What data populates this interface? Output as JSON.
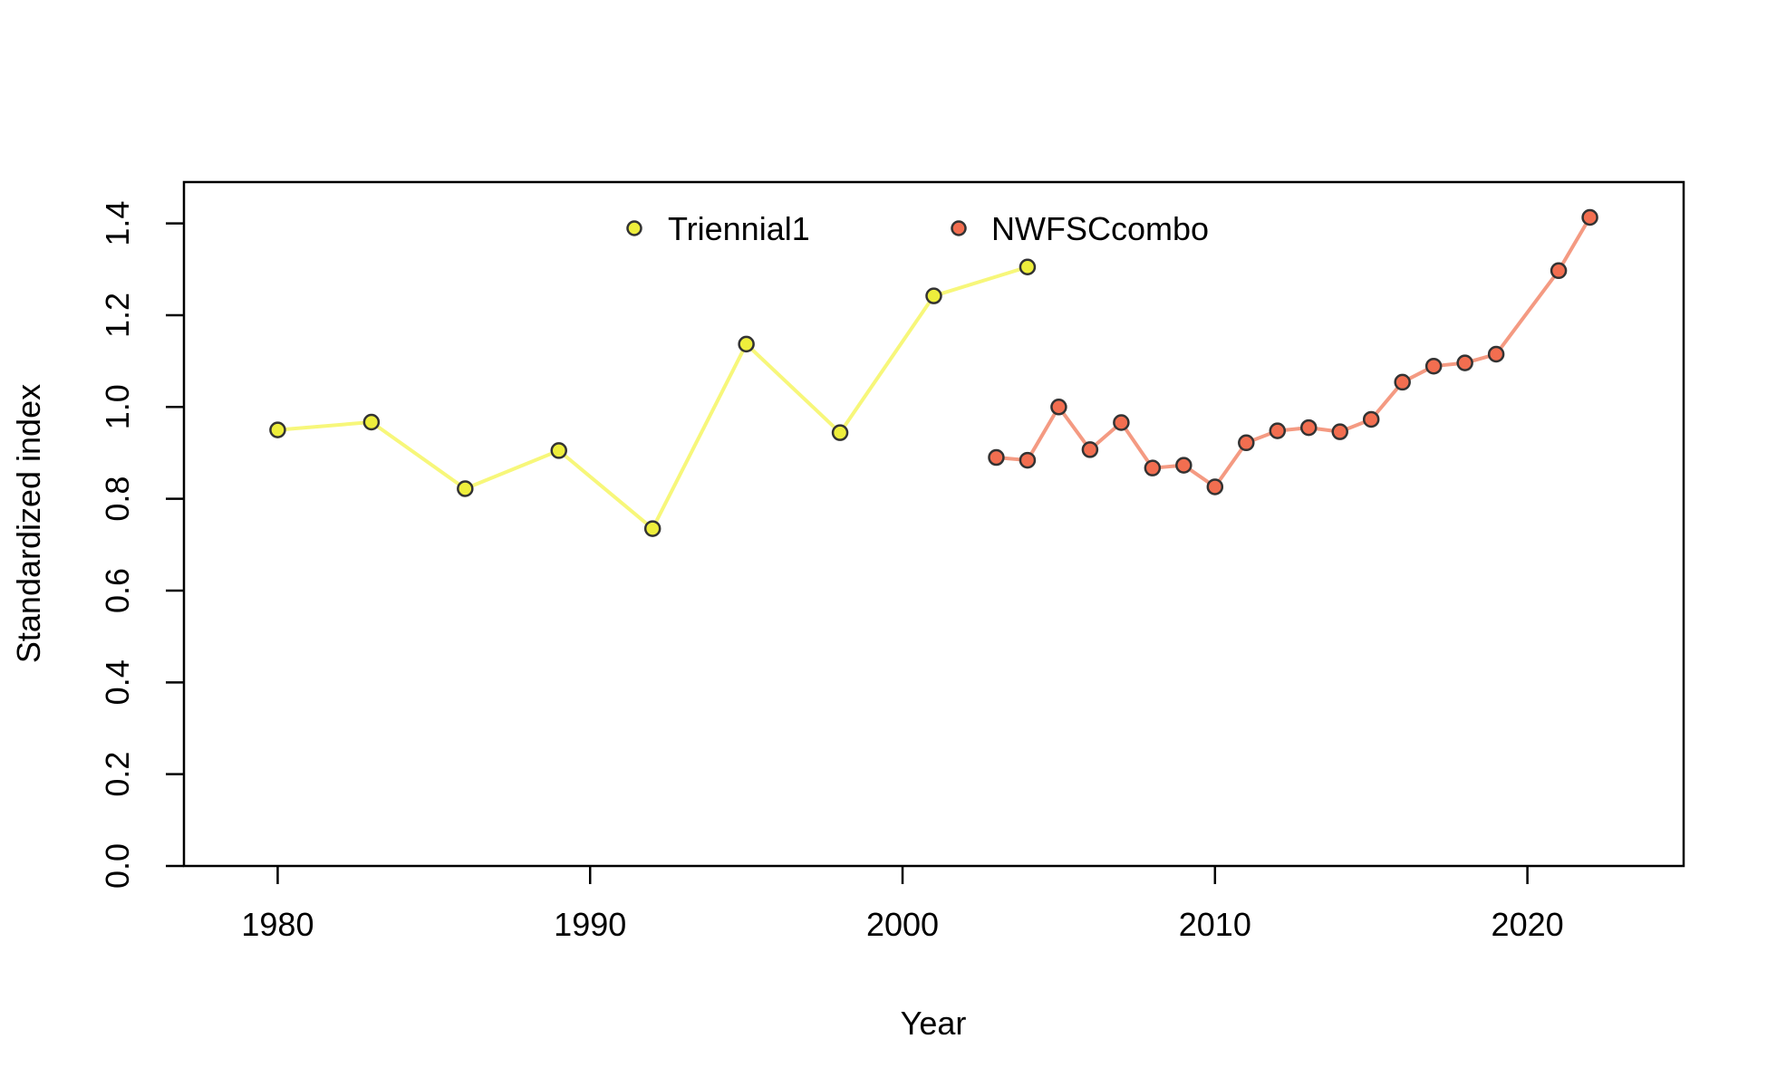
{
  "chart_data": {
    "type": "line",
    "title": "",
    "xlabel": "Year",
    "ylabel": "Standardized index",
    "xlim": [
      1977,
      2025
    ],
    "ylim": [
      0,
      1.49
    ],
    "x_ticks": [
      1980,
      1990,
      2000,
      2010,
      2020
    ],
    "x_tick_labels": [
      "1980",
      "1990",
      "2000",
      "2010",
      "2020"
    ],
    "y_ticks": [
      0,
      0.2,
      0.4,
      0.6,
      0.8,
      1.0,
      1.2,
      1.4
    ],
    "y_tick_labels": [
      "0.0",
      "0.2",
      "0.4",
      "0.6",
      "0.8",
      "1.0",
      "1.2",
      "1.4"
    ],
    "grid": false,
    "legend_position": "top-center",
    "series": [
      {
        "name": "Triennial1",
        "line_color": "#F7F77A",
        "point_color": "#EEEE3C",
        "x": [
          1980,
          1983,
          1986,
          1989,
          1992,
          1995,
          1998,
          2001,
          2004
        ],
        "y": [
          0.95,
          0.967,
          0.822,
          0.905,
          0.735,
          1.137,
          0.944,
          1.242,
          1.305
        ]
      },
      {
        "name": "NWFSCcombo",
        "line_color": "#F49A82",
        "point_color": "#F26E50",
        "x": [
          2003,
          2004,
          2005,
          2006,
          2007,
          2008,
          2009,
          2010,
          2011,
          2012,
          2013,
          2014,
          2015,
          2016,
          2017,
          2018,
          2019,
          2021,
          2022
        ],
        "y": [
          0.89,
          0.884,
          1.0,
          0.907,
          0.966,
          0.867,
          0.873,
          0.826,
          0.922,
          0.948,
          0.955,
          0.946,
          0.973,
          1.054,
          1.089,
          1.096,
          1.115,
          1.297,
          1.413
        ]
      }
    ]
  }
}
